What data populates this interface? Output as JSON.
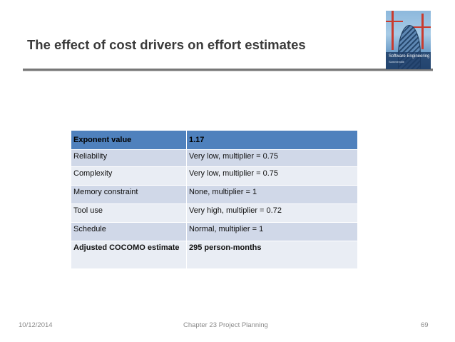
{
  "slide": {
    "title": "The effect of cost drivers on effort estimates",
    "cover_image": {
      "title": "Software Engineering",
      "subtitle": "Sommerville"
    },
    "table": {
      "rows": [
        {
          "label": "Exponent value",
          "value": "1.17"
        },
        {
          "label": "Reliability",
          "value": "Very low, multiplier = 0.75"
        },
        {
          "label": "Complexity",
          "value": "Very low, multiplier = 0.75"
        },
        {
          "label": "Memory constraint",
          "value": "None, multiplier = 1"
        },
        {
          "label": "Tool use",
          "value": "Very high, multiplier = 0.72"
        },
        {
          "label": "Schedule",
          "value": "Normal, multiplier = 1"
        },
        {
          "label": "Adjusted COCOMO estimate",
          "value": "295 person-months"
        }
      ]
    },
    "footer": {
      "date": "10/12/2014",
      "chapter": "Chapter 23 Project Planning",
      "page": "69"
    },
    "colors": {
      "header_row": "#4f81bd",
      "band_dark": "#d0d8e8",
      "band_light": "#e9edf4"
    }
  }
}
